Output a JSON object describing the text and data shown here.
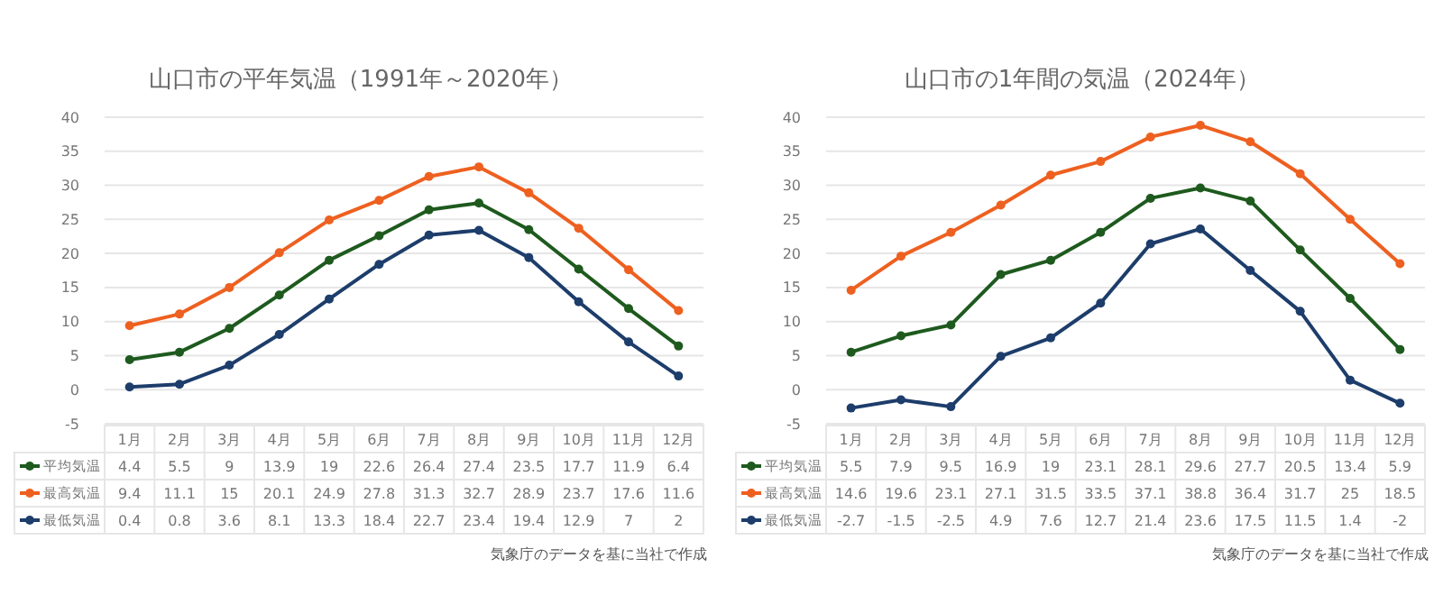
{
  "chart_data": [
    {
      "type": "line",
      "title": "山口市の平年気温（1991年～2020年）",
      "categories": [
        "1月",
        "2月",
        "3月",
        "4月",
        "5月",
        "6月",
        "7月",
        "8月",
        "9月",
        "10月",
        "11月",
        "12月"
      ],
      "series": [
        {
          "name": "平均気温",
          "color": "#1e5a1e",
          "values": [
            4.4,
            5.5,
            9,
            13.9,
            19,
            22.6,
            26.4,
            27.4,
            23.5,
            17.7,
            11.9,
            6.4
          ]
        },
        {
          "name": "最高気温",
          "color": "#ee6020",
          "values": [
            9.4,
            11.1,
            15,
            20.1,
            24.9,
            27.8,
            31.3,
            32.7,
            28.9,
            23.7,
            17.6,
            11.6
          ]
        },
        {
          "name": "最低気温",
          "color": "#1d3d6b",
          "values": [
            0.4,
            0.8,
            3.6,
            8.1,
            13.3,
            18.4,
            22.7,
            23.4,
            19.4,
            12.9,
            7,
            2
          ]
        }
      ],
      "ylim": [
        -5,
        40
      ],
      "yticks": [
        -5,
        0,
        5,
        10,
        15,
        20,
        25,
        30,
        35,
        40
      ],
      "grid": "y",
      "marker": "circle",
      "legend": "bottom",
      "data_labels": true,
      "annotations": [
        "気象庁のデータを基に当社で作成"
      ]
    },
    {
      "type": "line",
      "title": "山口市の1年間の気温（2024年）",
      "categories": [
        "1月",
        "2月",
        "3月",
        "4月",
        "5月",
        "6月",
        "7月",
        "8月",
        "9月",
        "10月",
        "11月",
        "12月"
      ],
      "series": [
        {
          "name": "平均気温",
          "color": "#1e5a1e",
          "values": [
            5.5,
            7.9,
            9.5,
            16.9,
            19,
            23.1,
            28.1,
            29.6,
            27.7,
            20.5,
            13.4,
            5.9
          ]
        },
        {
          "name": "最高気温",
          "color": "#ee6020",
          "values": [
            14.6,
            19.6,
            23.1,
            27.1,
            31.5,
            33.5,
            37.1,
            38.8,
            36.4,
            31.7,
            25,
            18.5
          ]
        },
        {
          "name": "最低気温",
          "color": "#1d3d6b",
          "values": [
            -2.7,
            -1.5,
            -2.5,
            4.9,
            7.6,
            12.7,
            21.4,
            23.6,
            17.5,
            11.5,
            1.4,
            -2
          ]
        }
      ],
      "ylim": [
        -5,
        40
      ],
      "yticks": [
        -5,
        0,
        5,
        10,
        15,
        20,
        25,
        30,
        35,
        40
      ],
      "grid": "y",
      "marker": "circle",
      "legend": "bottom",
      "data_labels": true,
      "annotations": [
        "気象庁のデータを基に当社で作成"
      ]
    }
  ]
}
